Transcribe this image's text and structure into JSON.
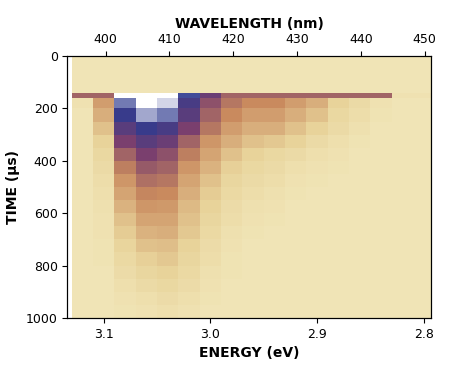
{
  "chart_data": {
    "type": "heatmap",
    "x_label": "ENERGY (eV)",
    "x2_label": "WAVELENGTH (nm)",
    "y_label": "TIME (µs)",
    "xlim": [
      3.134,
      2.793
    ],
    "xticks": [
      3.1,
      3.0,
      2.9,
      2.8
    ],
    "x2lim": [
      394,
      451
    ],
    "x2ticks": [
      400,
      410,
      420,
      430,
      440,
      450
    ],
    "ylim": [
      1000,
      0
    ],
    "yticks": [
      0,
      200,
      400,
      600,
      800,
      1000
    ],
    "energy_edges": [
      3.13,
      3.11,
      3.09,
      3.07,
      3.05,
      3.03,
      3.01,
      2.99,
      2.97,
      2.95,
      2.93,
      2.91,
      2.89,
      2.87,
      2.85,
      2.83,
      2.81,
      2.79
    ],
    "time_edges": [
      0,
      50,
      100,
      140,
      160,
      200,
      250,
      300,
      350,
      400,
      450,
      500,
      550,
      600,
      650,
      700,
      750,
      800,
      850,
      900,
      950,
      1000
    ],
    "color_range": [
      0,
      100
    ],
    "cells": [
      [
        3,
        3,
        3,
        3,
        3,
        3,
        3,
        3,
        3,
        3,
        3,
        3,
        3,
        3,
        3,
        3,
        3
      ],
      [
        3,
        3,
        3,
        3,
        3,
        3,
        3,
        3,
        3,
        3,
        3,
        3,
        3,
        3,
        3,
        3,
        3
      ],
      [
        3,
        3,
        3,
        3,
        3,
        3,
        3,
        3,
        3,
        3,
        3,
        3,
        3,
        3,
        3,
        3,
        3
      ],
      [
        45,
        45,
        100,
        100,
        100,
        80,
        60,
        45,
        45,
        45,
        45,
        45,
        45,
        45,
        45,
        5,
        5
      ],
      [
        5,
        30,
        85,
        100,
        95,
        70,
        50,
        40,
        35,
        35,
        30,
        25,
        15,
        10,
        5,
        3,
        3
      ],
      [
        3,
        25,
        75,
        90,
        85,
        65,
        45,
        35,
        30,
        30,
        25,
        20,
        12,
        8,
        4,
        3,
        3
      ],
      [
        3,
        20,
        65,
        75,
        70,
        55,
        40,
        30,
        25,
        25,
        20,
        15,
        10,
        6,
        3,
        3,
        3
      ],
      [
        3,
        15,
        55,
        65,
        60,
        45,
        32,
        25,
        20,
        18,
        15,
        10,
        7,
        4,
        3,
        3,
        3
      ],
      [
        3,
        12,
        45,
        55,
        50,
        38,
        28,
        20,
        15,
        12,
        10,
        7,
        5,
        3,
        3,
        3,
        3
      ],
      [
        3,
        10,
        38,
        48,
        45,
        32,
        24,
        16,
        12,
        10,
        7,
        5,
        4,
        3,
        3,
        3,
        3
      ],
      [
        3,
        8,
        32,
        42,
        40,
        28,
        20,
        13,
        10,
        8,
        5,
        4,
        3,
        3,
        3,
        3,
        3
      ],
      [
        3,
        7,
        28,
        36,
        35,
        25,
        17,
        11,
        8,
        6,
        4,
        3,
        3,
        3,
        3,
        3,
        3
      ],
      [
        3,
        6,
        24,
        32,
        31,
        22,
        15,
        9,
        6,
        5,
        3,
        3,
        3,
        3,
        3,
        3,
        3
      ],
      [
        3,
        5,
        20,
        28,
        28,
        20,
        13,
        8,
        5,
        4,
        3,
        3,
        3,
        3,
        3,
        3,
        3
      ],
      [
        3,
        5,
        17,
        24,
        25,
        18,
        11,
        6,
        4,
        3,
        3,
        3,
        3,
        3,
        3,
        3,
        3
      ],
      [
        3,
        4,
        14,
        20,
        21,
        15,
        9,
        5,
        3,
        3,
        3,
        3,
        3,
        3,
        3,
        3,
        3
      ],
      [
        3,
        4,
        11,
        16,
        18,
        13,
        8,
        4,
        3,
        3,
        3,
        3,
        3,
        3,
        3,
        3,
        3
      ],
      [
        3,
        3,
        9,
        13,
        15,
        11,
        6,
        4,
        3,
        3,
        3,
        3,
        3,
        3,
        3,
        3,
        3
      ],
      [
        3,
        3,
        7,
        10,
        12,
        9,
        5,
        3,
        3,
        3,
        3,
        3,
        3,
        3,
        3,
        3,
        3
      ],
      [
        3,
        3,
        5,
        7,
        9,
        7,
        4,
        3,
        3,
        3,
        3,
        3,
        3,
        3,
        3,
        3,
        3
      ],
      [
        3,
        3,
        4,
        5,
        7,
        5,
        3,
        3,
        3,
        3,
        3,
        3,
        3,
        3,
        3,
        3,
        3
      ]
    ]
  }
}
